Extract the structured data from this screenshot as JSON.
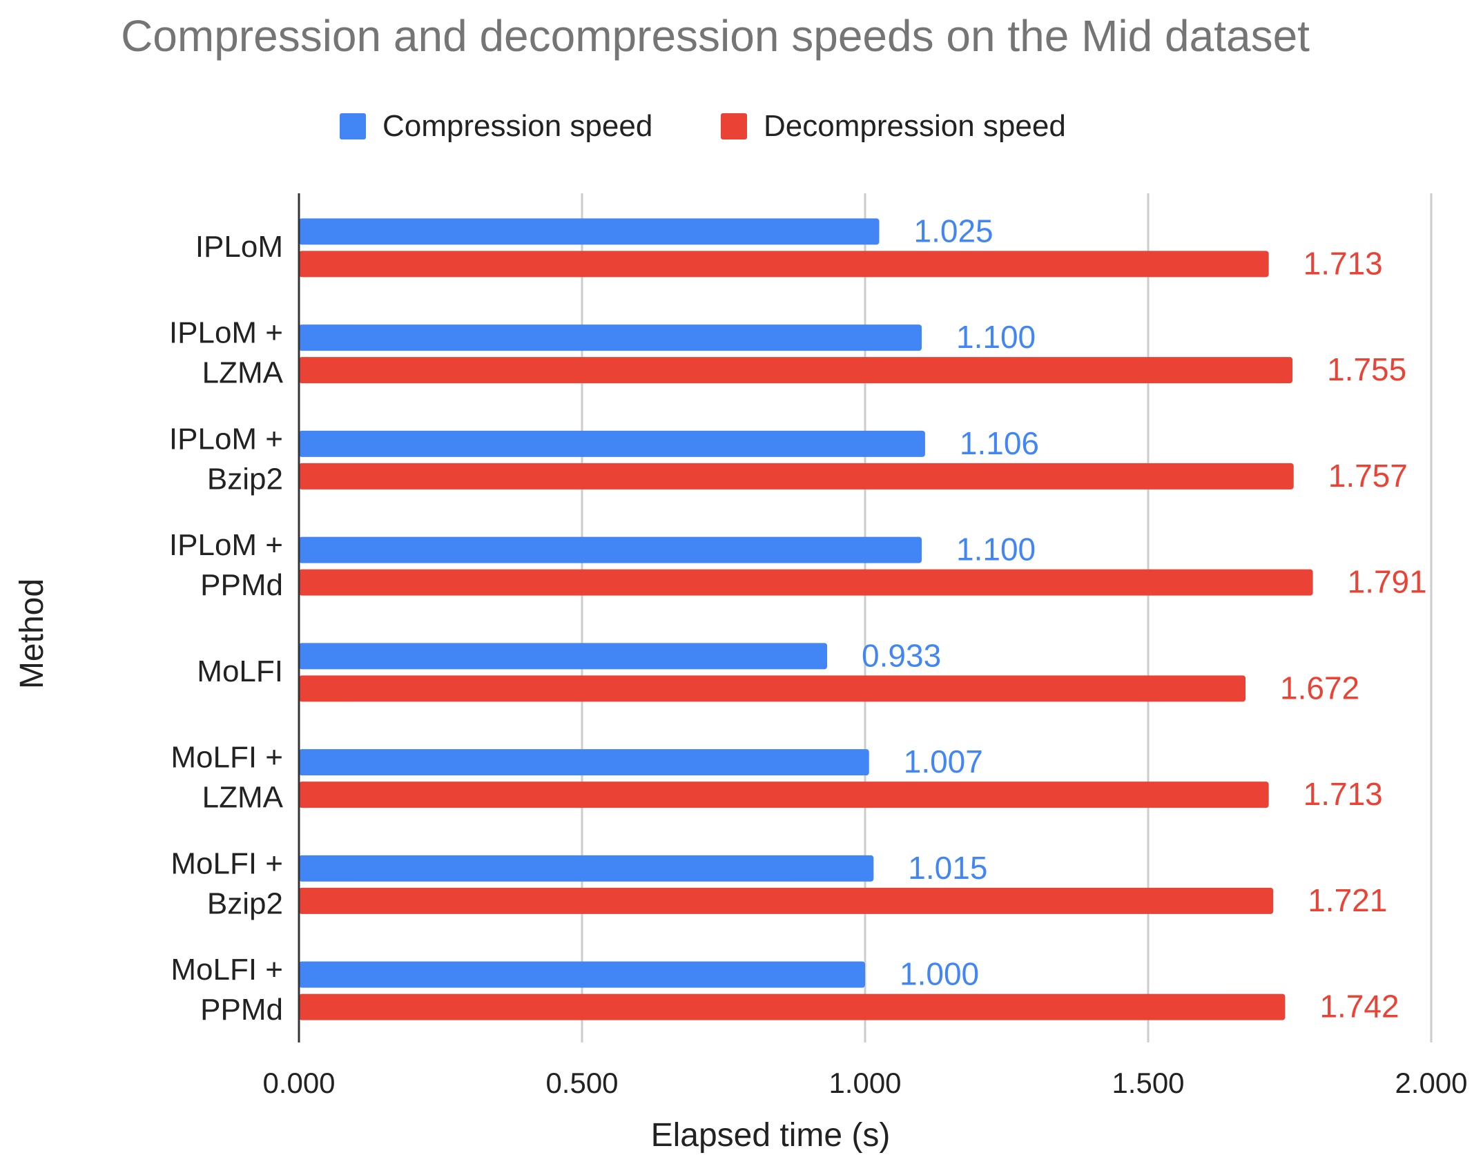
{
  "chart_data": {
    "type": "bar",
    "orientation": "horizontal",
    "title": "Compression and decompression speeds on the Mid dataset",
    "xlabel": "Elapsed time (s)",
    "ylabel": "Method",
    "xlim": [
      0,
      2
    ],
    "xticks": [
      "0.000",
      "0.500",
      "1.000",
      "1.500",
      "2.000"
    ],
    "grid": true,
    "legend_position": "top",
    "categories": [
      [
        "IPLoM"
      ],
      [
        "IPLoM +",
        "LZMA"
      ],
      [
        "IPLoM +",
        "Bzip2"
      ],
      [
        "IPLoM +",
        "PPMd"
      ],
      [
        "MoLFI"
      ],
      [
        "MoLFI +",
        "LZMA"
      ],
      [
        "MoLFI +",
        "Bzip2"
      ],
      [
        "MoLFI +",
        "PPMd"
      ]
    ],
    "series": [
      {
        "name": "Compression speed",
        "color": "#4285F4",
        "values": [
          1.025,
          1.1,
          1.106,
          1.1,
          0.933,
          1.007,
          1.015,
          1.0
        ],
        "labels": [
          "1.025",
          "1.100",
          "1.106",
          "1.100",
          "0.933",
          "1.007",
          "1.015",
          "1.000"
        ]
      },
      {
        "name": "Decompression speed",
        "color": "#EA4335",
        "values": [
          1.713,
          1.755,
          1.757,
          1.791,
          1.672,
          1.713,
          1.721,
          1.742
        ],
        "labels": [
          "1.713",
          "1.755",
          "1.757",
          "1.791",
          "1.672",
          "1.713",
          "1.721",
          "1.742"
        ]
      }
    ]
  },
  "colors": {
    "title": "#757575",
    "text": "#222222",
    "grid": "#cccccc",
    "axis": "#333333"
  }
}
